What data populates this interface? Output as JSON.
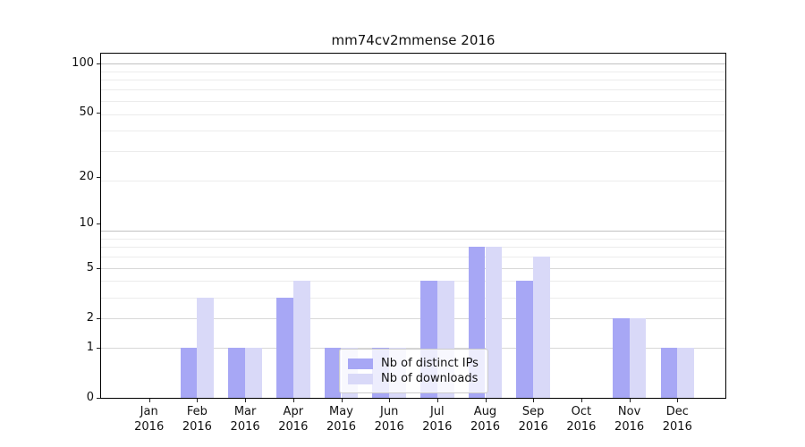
{
  "title": "mm74cv2mmense 2016",
  "legend": {
    "items": [
      {
        "label": "Nb of distinct IPs",
        "color": "#a7a7f5"
      },
      {
        "label": "Nb of downloads",
        "color": "#d9d9f8"
      }
    ]
  },
  "chart_data": {
    "type": "bar",
    "title": "mm74cv2mmense 2016",
    "categories": [
      "Jan 2016",
      "Feb 2016",
      "Mar 2016",
      "Apr 2016",
      "May 2016",
      "Jun 2016",
      "Jul 2016",
      "Aug 2016",
      "Sep 2016",
      "Oct 2016",
      "Nov 2016",
      "Dec 2016"
    ],
    "x_months": [
      "Jan",
      "Feb",
      "Mar",
      "Apr",
      "May",
      "Jun",
      "Jul",
      "Aug",
      "Sep",
      "Oct",
      "Nov",
      "Dec"
    ],
    "x_year": "2016",
    "series": [
      {
        "name": "Nb of distinct IPs",
        "color": "#a7a7f5",
        "values": [
          0,
          1,
          1,
          3,
          1,
          1,
          4,
          7,
          4,
          0,
          2,
          1
        ]
      },
      {
        "name": "Nb of downloads",
        "color": "#d9d9f8",
        "values": [
          0,
          3,
          1,
          4,
          1,
          1,
          4,
          7,
          6,
          0,
          2,
          1
        ]
      }
    ],
    "xlabel": "",
    "ylabel": "",
    "yscale": "log(1+x)",
    "y_ticks": [
      0,
      1,
      2,
      5,
      10,
      20,
      50,
      100
    ],
    "ylim": [
      0,
      114
    ],
    "grid": true,
    "grid_minor_steps": [
      2,
      3,
      4,
      5,
      6,
      7,
      8,
      9,
      20,
      30,
      40,
      50,
      60,
      70,
      80,
      90
    ],
    "grid_decade_steps": [
      10,
      100
    ],
    "legend_position": "inside lower-center",
    "colors": {
      "grid_decade": "#c2c2c2",
      "grid_labeled": "#d8d8d8",
      "grid_minor": "#ececec",
      "axis": "#000000"
    }
  }
}
